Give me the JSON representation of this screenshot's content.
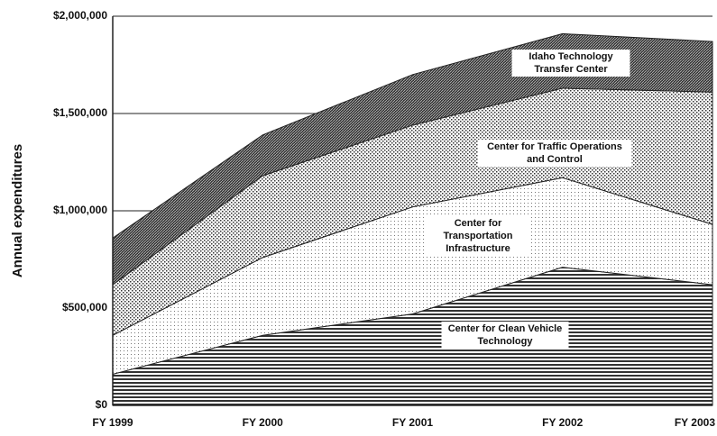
{
  "chart_data": {
    "type": "stacked-area",
    "y_label": "Annual expenditures",
    "categories": [
      "FY 1999",
      "FY 2000",
      "FY 2001",
      "FY 2002",
      "FY 2003"
    ],
    "series": [
      {
        "name": "Center for Clean Vehicle Technology",
        "color": "#333333",
        "pattern": "horizontal-lines",
        "values": [
          160000,
          360000,
          470000,
          710000,
          620000
        ]
      },
      {
        "name": "Center for Transportation Infrastructure",
        "color": "#777777",
        "pattern": "dots",
        "values": [
          200000,
          400000,
          550000,
          460000,
          310000
        ]
      },
      {
        "name": "Center for Traffic Operations and Control",
        "color": "#333333",
        "pattern": "dense-dots",
        "values": [
          260000,
          420000,
          420000,
          460000,
          680000
        ]
      },
      {
        "name": "Idaho Technology Transfer Center",
        "color": "#333333",
        "pattern": "diagonal",
        "values": [
          240000,
          210000,
          260000,
          280000,
          260000
        ]
      }
    ],
    "ylim": [
      0,
      2000000
    ],
    "yticks": [
      {
        "value": 0,
        "label": "$0"
      },
      {
        "value": 500000,
        "label": "$500,000"
      },
      {
        "value": 1000000,
        "label": "$1,000,000"
      },
      {
        "value": 1500000,
        "label": "$1,500,000"
      },
      {
        "value": 2000000,
        "label": "$2,000,000"
      }
    ],
    "grid": true
  }
}
